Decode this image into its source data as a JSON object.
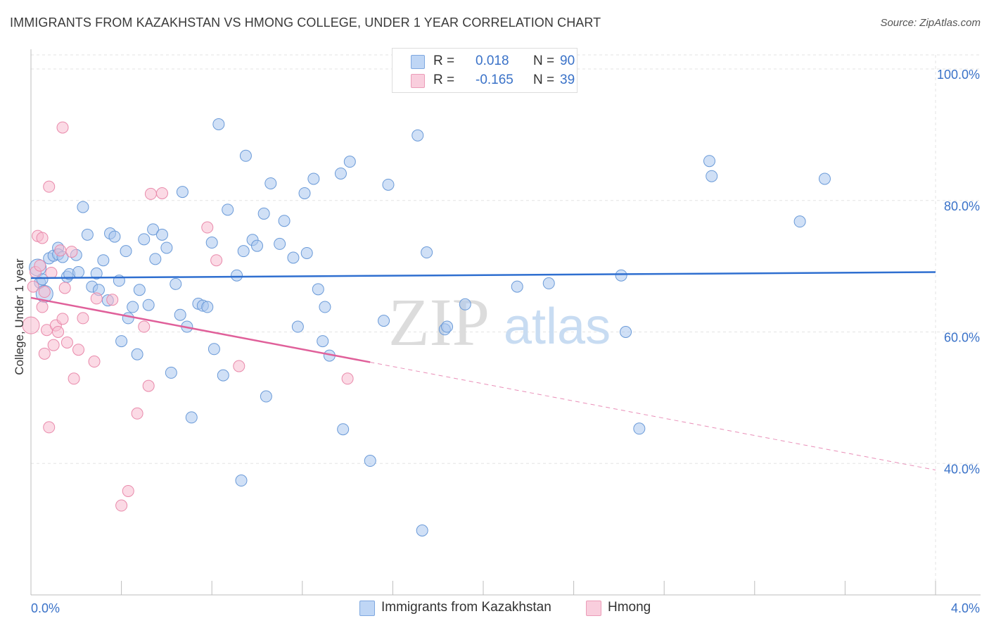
{
  "title": "IMMIGRANTS FROM KAZAKHSTAN VS HMONG COLLEGE, UNDER 1 YEAR CORRELATION CHART",
  "source": "Source: ZipAtlas.com",
  "watermark": {
    "zip": "ZIP",
    "atlas": "atlas"
  },
  "legend": {
    "rows": [
      {
        "r_label": "R =",
        "r_value": "0.018",
        "n_label": "N =",
        "n_value": "90",
        "color": "#a9c7ef"
      },
      {
        "r_label": "R =",
        "r_value": "-0.165",
        "n_label": "N =",
        "n_value": "39",
        "color": "#f7bcd0"
      }
    ]
  },
  "bottom_legend": [
    "Immigrants from Kazakhstan",
    "Hmong"
  ],
  "chart_data": {
    "type": "scatter",
    "title": "IMMIGRANTS FROM KAZAKHSTAN VS HMONG COLLEGE, UNDER 1 YEAR CORRELATION CHART",
    "xlabel": "",
    "ylabel": "College, Under 1 year",
    "xlim": [
      0.0,
      4.0
    ],
    "ylim": [
      20.0,
      103.0
    ],
    "x_ticks": [
      "0.0%",
      "4.0%"
    ],
    "y_ticks": [
      {
        "value": 100,
        "label": "100.0%"
      },
      {
        "value": 80,
        "label": "80.0%"
      },
      {
        "value": 60,
        "label": "60.0%"
      },
      {
        "value": 40,
        "label": "40.0%"
      }
    ],
    "grid": true,
    "legend_position": "top-center",
    "series": [
      {
        "name": "Immigrants from Kazakhstan",
        "color": "#a9c7ef",
        "edge": "#6a9ad8",
        "trend": {
          "x": [
            0.0,
            4.0
          ],
          "y": [
            68.2,
            69.1
          ],
          "color": "#2f6fd0"
        },
        "points": [
          [
            0.03,
            69.8
          ],
          [
            0.04,
            67.5
          ],
          [
            0.06,
            65.8
          ],
          [
            0.08,
            71.2
          ],
          [
            0.1,
            71.6
          ],
          [
            0.12,
            72.8
          ],
          [
            0.12,
            71.8
          ],
          [
            0.14,
            71.4
          ],
          [
            0.16,
            68.4
          ],
          [
            0.17,
            68.8
          ],
          [
            0.2,
            71.7
          ],
          [
            0.21,
            69.1
          ],
          [
            0.23,
            79.0
          ],
          [
            0.25,
            74.8
          ],
          [
            0.27,
            66.9
          ],
          [
            0.29,
            68.9
          ],
          [
            0.3,
            66.4
          ],
          [
            0.32,
            70.9
          ],
          [
            0.34,
            64.8
          ],
          [
            0.35,
            75.0
          ],
          [
            0.37,
            74.5
          ],
          [
            0.39,
            67.8
          ],
          [
            0.4,
            58.6
          ],
          [
            0.42,
            72.3
          ],
          [
            0.43,
            62.1
          ],
          [
            0.45,
            63.8
          ],
          [
            0.47,
            56.6
          ],
          [
            0.48,
            66.4
          ],
          [
            0.5,
            74.1
          ],
          [
            0.52,
            64.1
          ],
          [
            0.54,
            75.6
          ],
          [
            0.55,
            71.1
          ],
          [
            0.58,
            74.8
          ],
          [
            0.6,
            72.8
          ],
          [
            0.62,
            53.8
          ],
          [
            0.64,
            67.3
          ],
          [
            0.66,
            62.6
          ],
          [
            0.67,
            81.3
          ],
          [
            0.69,
            60.8
          ],
          [
            0.71,
            47.0
          ],
          [
            0.74,
            64.3
          ],
          [
            0.76,
            64.0
          ],
          [
            0.78,
            63.8
          ],
          [
            0.8,
            73.6
          ],
          [
            0.81,
            57.4
          ],
          [
            0.83,
            91.6
          ],
          [
            0.85,
            53.4
          ],
          [
            0.87,
            78.6
          ],
          [
            0.91,
            68.6
          ],
          [
            0.93,
            37.4
          ],
          [
            0.94,
            72.3
          ],
          [
            0.95,
            86.8
          ],
          [
            0.98,
            74.0
          ],
          [
            1.0,
            73.1
          ],
          [
            1.03,
            78.0
          ],
          [
            1.04,
            50.2
          ],
          [
            1.06,
            82.6
          ],
          [
            1.1,
            73.4
          ],
          [
            1.12,
            76.9
          ],
          [
            1.16,
            71.3
          ],
          [
            1.18,
            60.8
          ],
          [
            1.21,
            81.1
          ],
          [
            1.22,
            72.0
          ],
          [
            1.25,
            83.3
          ],
          [
            1.27,
            66.5
          ],
          [
            1.29,
            58.6
          ],
          [
            1.3,
            63.8
          ],
          [
            1.32,
            56.4
          ],
          [
            1.37,
            84.1
          ],
          [
            1.38,
            45.2
          ],
          [
            1.41,
            85.9
          ],
          [
            1.5,
            40.4
          ],
          [
            1.56,
            61.7
          ],
          [
            1.58,
            82.4
          ],
          [
            1.71,
            89.9
          ],
          [
            1.73,
            29.8
          ],
          [
            1.75,
            72.1
          ],
          [
            1.83,
            60.4
          ],
          [
            1.84,
            60.8
          ],
          [
            1.92,
            64.2
          ],
          [
            2.15,
            66.9
          ],
          [
            2.29,
            67.4
          ],
          [
            2.61,
            68.6
          ],
          [
            2.63,
            60.0
          ],
          [
            2.69,
            45.3
          ],
          [
            3.0,
            86.0
          ],
          [
            3.01,
            83.7
          ],
          [
            3.4,
            76.8
          ],
          [
            3.51,
            83.3
          ],
          [
            0.05,
            68.0
          ]
        ]
      },
      {
        "name": "Hmong",
        "color": "#f7bcd0",
        "edge": "#e98aab",
        "trend": {
          "x": [
            0.0,
            1.5,
            4.0
          ],
          "y": [
            65.2,
            55.4,
            39.0
          ],
          "solid_until": 1.5,
          "color": "#e0609a"
        },
        "points": [
          [
            0.0,
            61.0
          ],
          [
            0.01,
            66.9
          ],
          [
            0.02,
            69.1
          ],
          [
            0.03,
            74.6
          ],
          [
            0.04,
            70.1
          ],
          [
            0.05,
            63.8
          ],
          [
            0.05,
            74.3
          ],
          [
            0.06,
            56.7
          ],
          [
            0.07,
            60.3
          ],
          [
            0.08,
            45.5
          ],
          [
            0.08,
            82.1
          ],
          [
            0.09,
            69.0
          ],
          [
            0.1,
            58.0
          ],
          [
            0.11,
            61.0
          ],
          [
            0.12,
            60.0
          ],
          [
            0.13,
            72.4
          ],
          [
            0.14,
            91.1
          ],
          [
            0.14,
            62.0
          ],
          [
            0.15,
            66.7
          ],
          [
            0.16,
            58.4
          ],
          [
            0.19,
            52.9
          ],
          [
            0.21,
            57.3
          ],
          [
            0.23,
            62.1
          ],
          [
            0.28,
            55.5
          ],
          [
            0.29,
            65.1
          ],
          [
            0.36,
            64.9
          ],
          [
            0.4,
            33.6
          ],
          [
            0.43,
            35.8
          ],
          [
            0.47,
            47.6
          ],
          [
            0.5,
            60.8
          ],
          [
            0.52,
            51.8
          ],
          [
            0.53,
            81.0
          ],
          [
            0.58,
            81.1
          ],
          [
            0.78,
            75.9
          ],
          [
            0.82,
            70.9
          ],
          [
            0.92,
            54.8
          ],
          [
            1.4,
            52.9
          ],
          [
            0.06,
            66.1
          ],
          [
            0.18,
            72.2
          ]
        ]
      }
    ]
  }
}
